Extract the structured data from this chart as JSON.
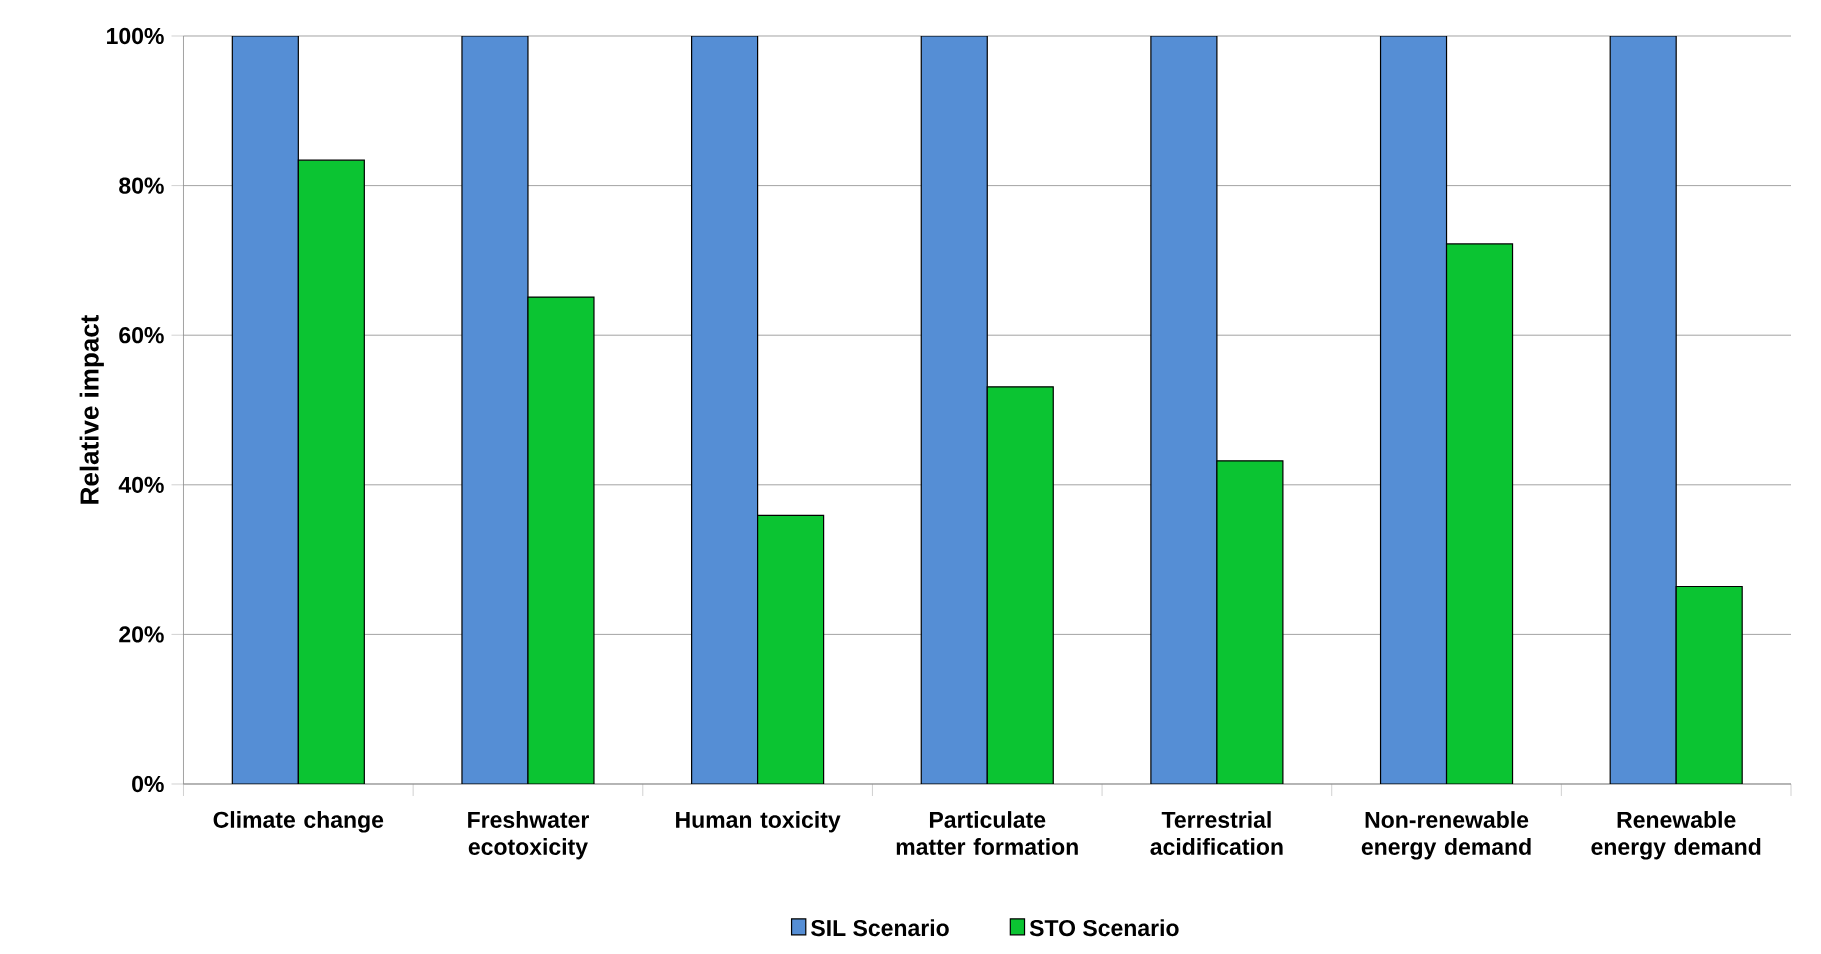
{
  "chart_data": {
    "type": "bar",
    "ylabel": "Relative impact",
    "categories": [
      "Climate change",
      "Freshwater ecotoxicity",
      "Human toxicity",
      "Particulate matter formation",
      "Terrestrial acidification",
      "Non-renewable energy demand",
      "Renewable energy demand"
    ],
    "series": [
      {
        "name": "SIL Scenario",
        "color": "#558ed5",
        "values": [
          100,
          100,
          100,
          100,
          100,
          100,
          100
        ]
      },
      {
        "name": "STO Scenario",
        "color": "#0bc432",
        "values": [
          83.4,
          65.1,
          35.9,
          53.1,
          43.2,
          72.2,
          26.4
        ]
      }
    ],
    "ylim": [
      0,
      100
    ],
    "yticks": [
      {
        "value": 0,
        "label": "0%"
      },
      {
        "value": 20,
        "label": "20%"
      },
      {
        "value": 40,
        "label": "40%"
      },
      {
        "value": 60,
        "label": "60%"
      },
      {
        "value": 80,
        "label": "80%"
      },
      {
        "value": 100,
        "label": "100%"
      }
    ],
    "grid": "y",
    "legend": "bottom"
  }
}
